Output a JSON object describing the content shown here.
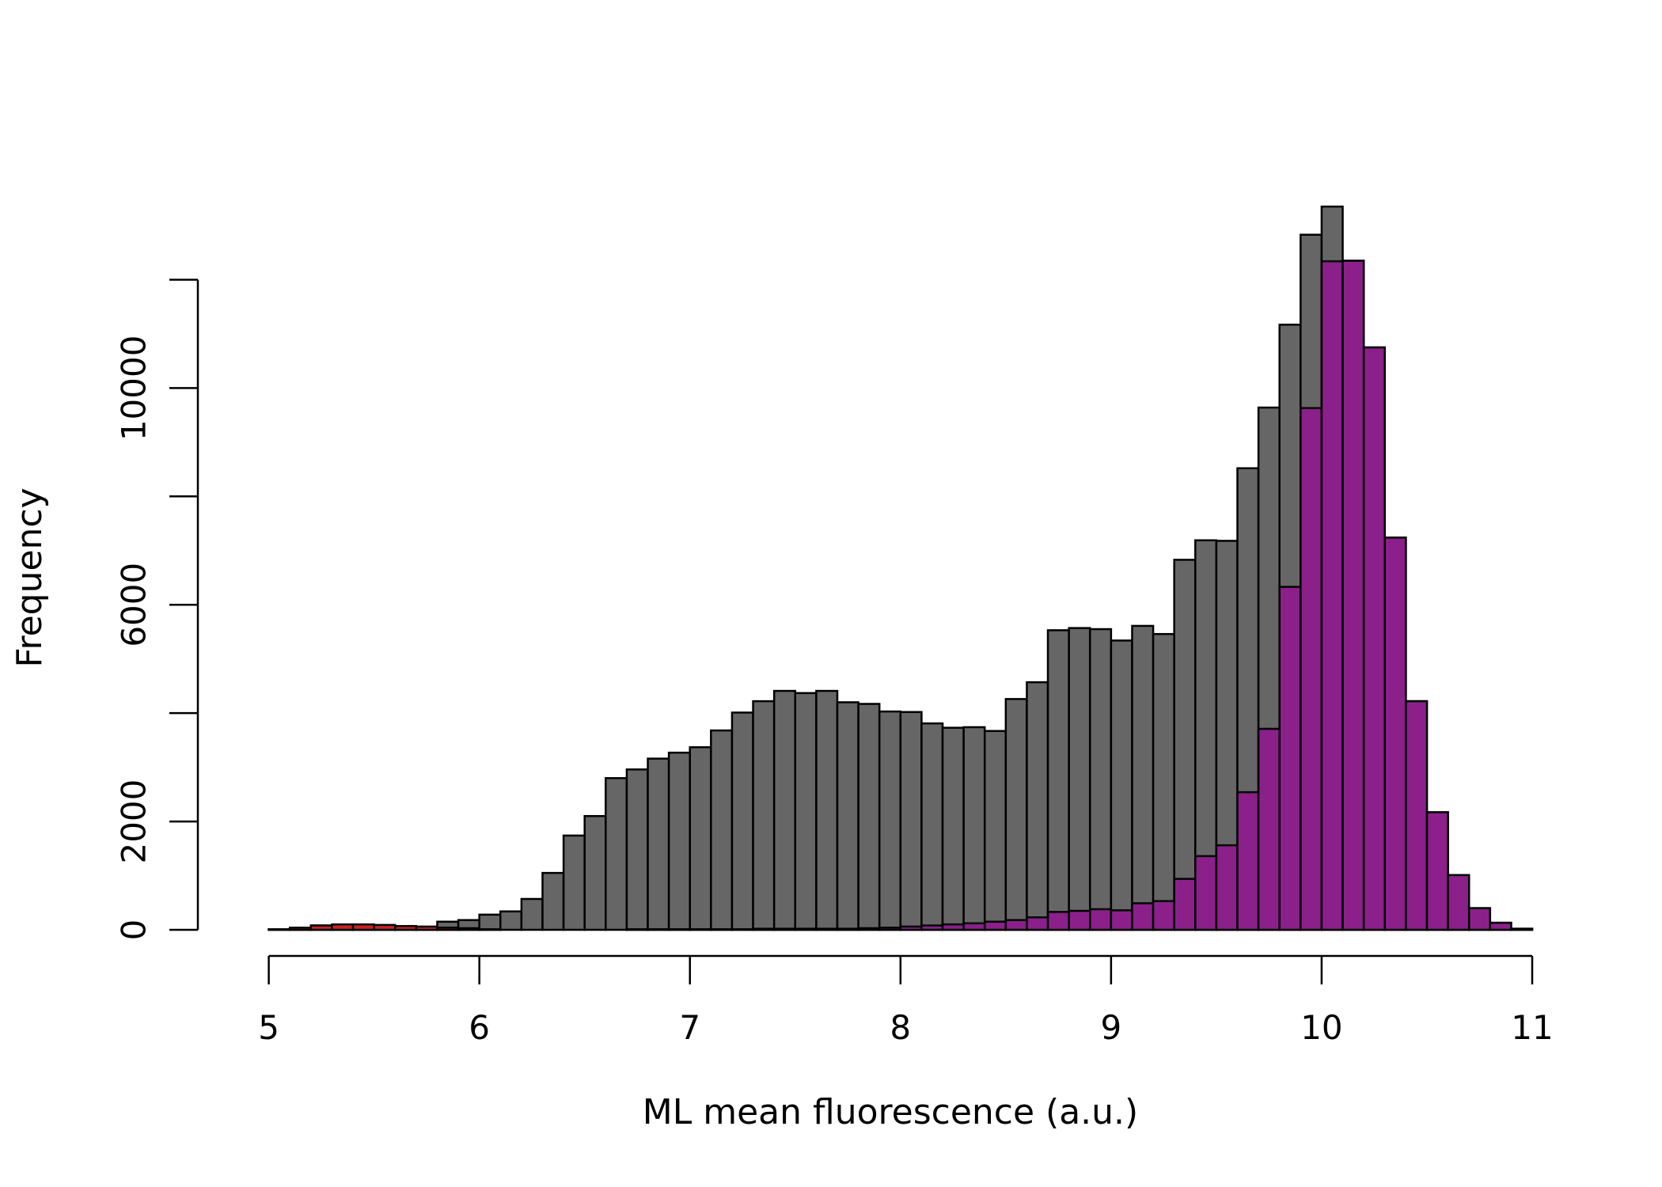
{
  "chart_data": {
    "type": "bar",
    "title": "",
    "xlabel": "ML mean fluorescence (a.u.)",
    "ylabel": "Frequency",
    "xlim": [
      4.9,
      11.0
    ],
    "ylim": [
      0,
      13000
    ],
    "x_ticks": [
      5,
      6,
      7,
      8,
      9,
      10,
      11
    ],
    "x_tick_labels": [
      "5",
      "6",
      "7",
      "8",
      "9",
      "10",
      "11"
    ],
    "y_ticks": [
      0,
      2000,
      4000,
      6000,
      8000,
      10000,
      12000
    ],
    "y_tick_labels": [
      "0",
      "2000",
      "",
      "6000",
      "",
      "10000",
      ""
    ],
    "bin_edges": [
      4.9,
      5.0,
      5.1,
      5.2,
      5.3,
      5.4,
      5.5,
      5.6,
      5.7,
      5.8,
      5.9,
      6.0,
      6.1,
      6.2,
      6.3,
      6.4,
      6.5,
      6.6,
      6.7,
      6.8,
      6.9,
      7.0,
      7.1,
      7.2,
      7.3,
      7.4,
      7.5,
      7.6,
      7.7,
      7.8,
      7.9,
      8.0,
      8.1,
      8.2,
      8.3,
      8.4,
      8.5,
      8.6,
      8.7,
      8.8,
      8.9,
      9.0,
      9.1,
      9.2,
      9.3,
      9.4,
      9.5,
      9.6,
      9.7,
      9.8,
      9.9,
      10.0,
      10.1,
      10.2,
      10.3,
      10.4,
      10.5,
      10.6,
      10.7,
      10.8,
      10.9,
      11.0
    ],
    "series": [
      {
        "color": "#666666",
        "values": [
          0,
          10,
          40,
          80,
          60,
          60,
          40,
          40,
          40,
          150,
          180,
          280,
          340,
          570,
          1050,
          1740,
          2100,
          2800,
          2960,
          3160,
          3270,
          3370,
          3680,
          4010,
          4220,
          4410,
          4370,
          4410,
          4200,
          4170,
          4030,
          4020,
          3810,
          3730,
          3740,
          3670,
          4260,
          4570,
          5530,
          5570,
          5550,
          5340,
          5610,
          5460,
          6830,
          7190,
          7180,
          8520,
          9640,
          11170,
          12830,
          13350,
          12350,
          10750,
          7240,
          4220,
          2170,
          1010,
          400,
          130,
          20
        ]
      },
      {
        "color": "#8b208b",
        "values": [
          0,
          0,
          0,
          0,
          0,
          0,
          0,
          0,
          0,
          0,
          0,
          0,
          0,
          0,
          0,
          0,
          0,
          0,
          10,
          10,
          10,
          10,
          10,
          10,
          20,
          20,
          20,
          20,
          20,
          30,
          40,
          60,
          80,
          100,
          120,
          150,
          180,
          230,
          330,
          350,
          380,
          360,
          490,
          530,
          940,
          1360,
          1560,
          2540,
          3710,
          6330,
          9630,
          12340,
          12350,
          10750,
          7240,
          4220,
          2170,
          1010,
          400,
          130,
          20
        ]
      },
      {
        "color": "#cc2222",
        "values": [
          0,
          10,
          40,
          80,
          100,
          100,
          90,
          70,
          60,
          40,
          30,
          10,
          0,
          0,
          0,
          0,
          0,
          0,
          0,
          0,
          0,
          0,
          0,
          0,
          0,
          0,
          0,
          0,
          0,
          0,
          0,
          0,
          0,
          0,
          0,
          0,
          0,
          0,
          0,
          0,
          0,
          0,
          0,
          0,
          0,
          0,
          0,
          0,
          0,
          0,
          0,
          0,
          0,
          0,
          0,
          0,
          0,
          0,
          0,
          0,
          0
        ]
      }
    ]
  }
}
